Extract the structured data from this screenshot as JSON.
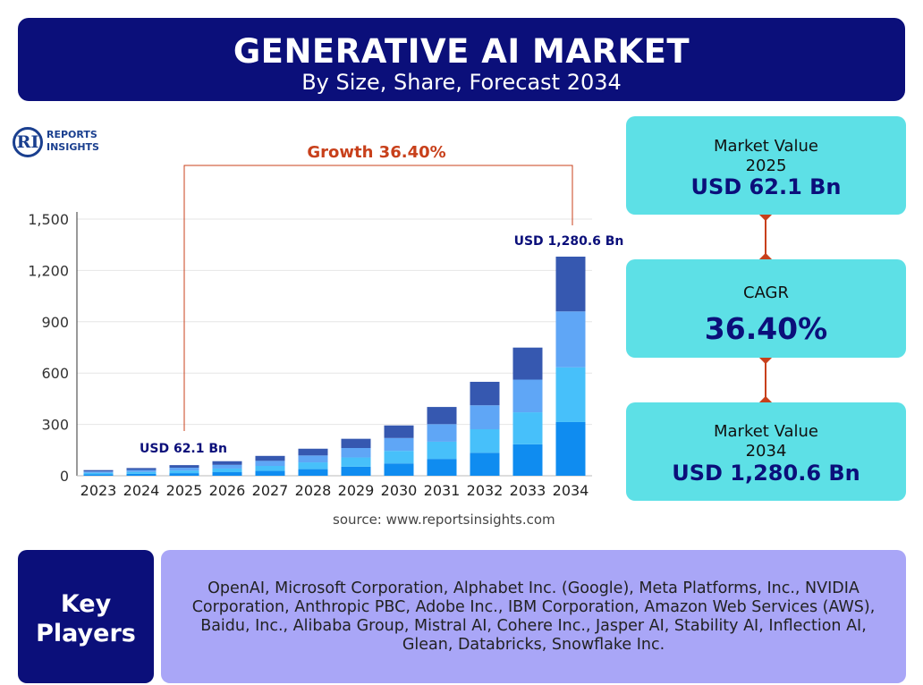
{
  "header": {
    "title": "GENERATIVE AI MARKET",
    "subtitle": "By Size, Share, Forecast 2034"
  },
  "logo": {
    "mark": "RI",
    "line1": "REPORTS",
    "line2": "INSIGHTS"
  },
  "chart_data": {
    "type": "bar",
    "stacked": true,
    "categories": [
      "2023",
      "2024",
      "2025",
      "2026",
      "2027",
      "2028",
      "2029",
      "2030",
      "2031",
      "2032",
      "2033",
      "2034"
    ],
    "totals": [
      33,
      45,
      62.1,
      85,
      116,
      158,
      216,
      294,
      402,
      549,
      749,
      1280.6
    ],
    "stack_shares": [
      0.245,
      0.25,
      0.255,
      0.25
    ],
    "segment_colors": [
      "#0f8cf0",
      "#47c0fa",
      "#5fa6f6",
      "#3658b0"
    ],
    "ylim": [
      0,
      1500
    ],
    "yticks": [
      0,
      300,
      600,
      900,
      1200,
      1500
    ],
    "ytick_labels": [
      "0",
      "300",
      "600",
      "900",
      "1,200",
      "1,500"
    ],
    "grid": true,
    "annotations": {
      "growth": "Growth 36.40%",
      "start_label": "USD 62.1 Bn",
      "end_label": "USD 1,280.6 Bn",
      "start_year": "2025",
      "end_year": "2034"
    },
    "colors": {
      "accent": "#c8401b",
      "label": "#0b0f7a",
      "grid": "#e6e6e6"
    }
  },
  "source": "source: www.reportsinsights.com",
  "kpis": {
    "value_2025": {
      "label": "Market Value",
      "year": "2025",
      "value": "USD 62.1 Bn"
    },
    "cagr": {
      "label": "CAGR",
      "value": "36.40%"
    },
    "value_2034": {
      "label": "Market Value",
      "year": "2034",
      "value": "USD 1,280.6 Bn"
    }
  },
  "key_players": {
    "label_line1": "Key",
    "label_line2": "Players",
    "text": "OpenAI, Microsoft Corporation, Alphabet Inc. (Google), Meta Platforms, Inc., NVIDIA Corporation, Anthropic PBC, Adobe Inc., IBM Corporation, Amazon Web Services (AWS), Baidu, Inc., Alibaba Group, Mistral AI, Cohere Inc., Jasper AI, Stability AI, Inflection AI, Glean, Databricks, Snowflake Inc."
  },
  "colors": {
    "navy": "#0b0f7a",
    "cyan": "#5de0e6",
    "lavender": "#a9a6f7",
    "accent": "#c8401b"
  }
}
